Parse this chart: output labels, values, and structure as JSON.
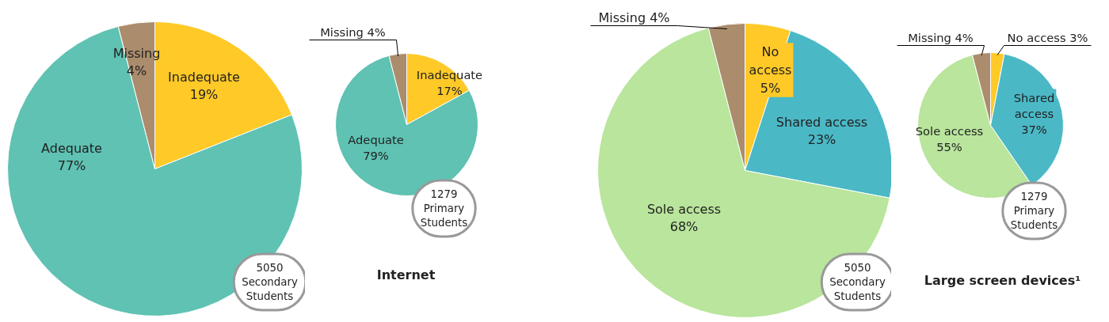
{
  "chart_data": [
    {
      "type": "pie",
      "categories": [
        "Inadequate",
        "Adequate",
        "Missing"
      ],
      "values": [
        19,
        77,
        4
      ],
      "value_labels": [
        "19%",
        "77%",
        "4%"
      ],
      "colors": [
        "#ffc928",
        "#5fc2b3",
        "#ab8c6c"
      ],
      "annotations": [
        "5050 Secondary Students"
      ]
    },
    {
      "type": "pie",
      "title": "Internet",
      "categories": [
        "Inadequate",
        "Adequate",
        "Missing"
      ],
      "values": [
        17,
        79,
        4
      ],
      "value_labels": [
        "17%",
        "79%",
        "4%"
      ],
      "colors": [
        "#ffc928",
        "#5fc2b3",
        "#ab8c6c"
      ],
      "annotations": [
        "1279 Primary Students"
      ]
    },
    {
      "type": "pie",
      "categories": [
        "No access",
        "Shared access",
        "Sole access",
        "Missing"
      ],
      "values": [
        5,
        23,
        68,
        4
      ],
      "value_labels": [
        "5%",
        "23%",
        "68%",
        "4%"
      ],
      "colors": [
        "#ffc928",
        "#4bb8c6",
        "#b9e59c",
        "#ab8c6c"
      ],
      "annotations": [
        "5050 Secondary Students"
      ]
    },
    {
      "type": "pie",
      "title": "Large screen devices¹",
      "categories": [
        "No access",
        "Shared access",
        "Sole access",
        "Missing"
      ],
      "values": [
        3,
        37,
        55,
        4
      ],
      "value_labels": [
        "3%",
        "37%",
        "55%",
        "4%"
      ],
      "colors": [
        "#ffc928",
        "#4bb8c6",
        "#b9e59c",
        "#ab8c6c"
      ],
      "annotations": [
        "1279 Primary Students"
      ]
    }
  ]
}
